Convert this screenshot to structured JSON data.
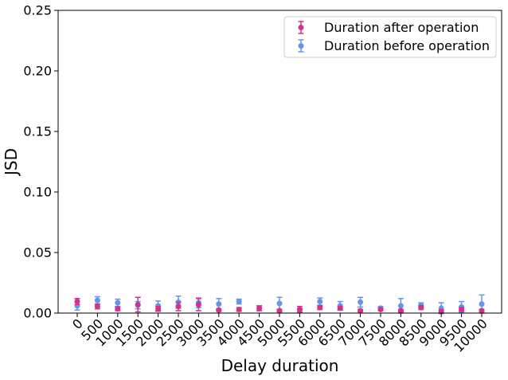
{
  "chart_data": {
    "type": "scatter",
    "xlabel": "Delay duration",
    "ylabel": "JSD",
    "ylim": [
      0,
      0.25
    ],
    "yticks": [
      "0.00",
      "0.05",
      "0.10",
      "0.15",
      "0.20",
      "0.25"
    ],
    "categories": [
      "0",
      "500",
      "1000",
      "1500",
      "2000",
      "2500",
      "3000",
      "3500",
      "4000",
      "4500",
      "5000",
      "5500",
      "6000",
      "6500",
      "7000",
      "7500",
      "8000",
      "8500",
      "9000",
      "9500",
      "10000"
    ],
    "legend_position": "top-right",
    "grid": false,
    "series": [
      {
        "name": "Duration after operation",
        "color": "#d62f8c",
        "marker": "circle",
        "values": [
          0.0095,
          0.0055,
          0.0035,
          0.007,
          0.0035,
          0.0055,
          0.007,
          0.0025,
          0.003,
          0.004,
          0.002,
          0.003,
          0.0045,
          0.004,
          0.002,
          0.003,
          0.002,
          0.0045,
          0.0015,
          0.003,
          0.002
        ],
        "errors": [
          0.0025,
          0.002,
          0.0015,
          0.006,
          0.002,
          0.0035,
          0.005,
          0.001,
          0.0015,
          0.002,
          0.001,
          0.0025,
          0.0015,
          0.0015,
          0.001,
          0.001,
          0.001,
          0.0015,
          0.001,
          0.0015,
          0.001
        ]
      },
      {
        "name": "Duration before operation",
        "color": "#6495ed",
        "marker": "circle",
        "values": [
          0.006,
          0.0105,
          0.0085,
          0.0065,
          0.006,
          0.009,
          0.0085,
          0.0075,
          0.0095,
          0.004,
          0.008,
          0.0025,
          0.0095,
          0.006,
          0.009,
          0.004,
          0.006,
          0.0065,
          0.004,
          0.005,
          0.0075
        ],
        "errors": [
          0.0035,
          0.003,
          0.003,
          0.003,
          0.004,
          0.005,
          0.004,
          0.0045,
          0.002,
          0.002,
          0.005,
          0.0015,
          0.003,
          0.0035,
          0.004,
          0.0015,
          0.006,
          0.002,
          0.0045,
          0.0045,
          0.0075
        ]
      }
    ]
  }
}
